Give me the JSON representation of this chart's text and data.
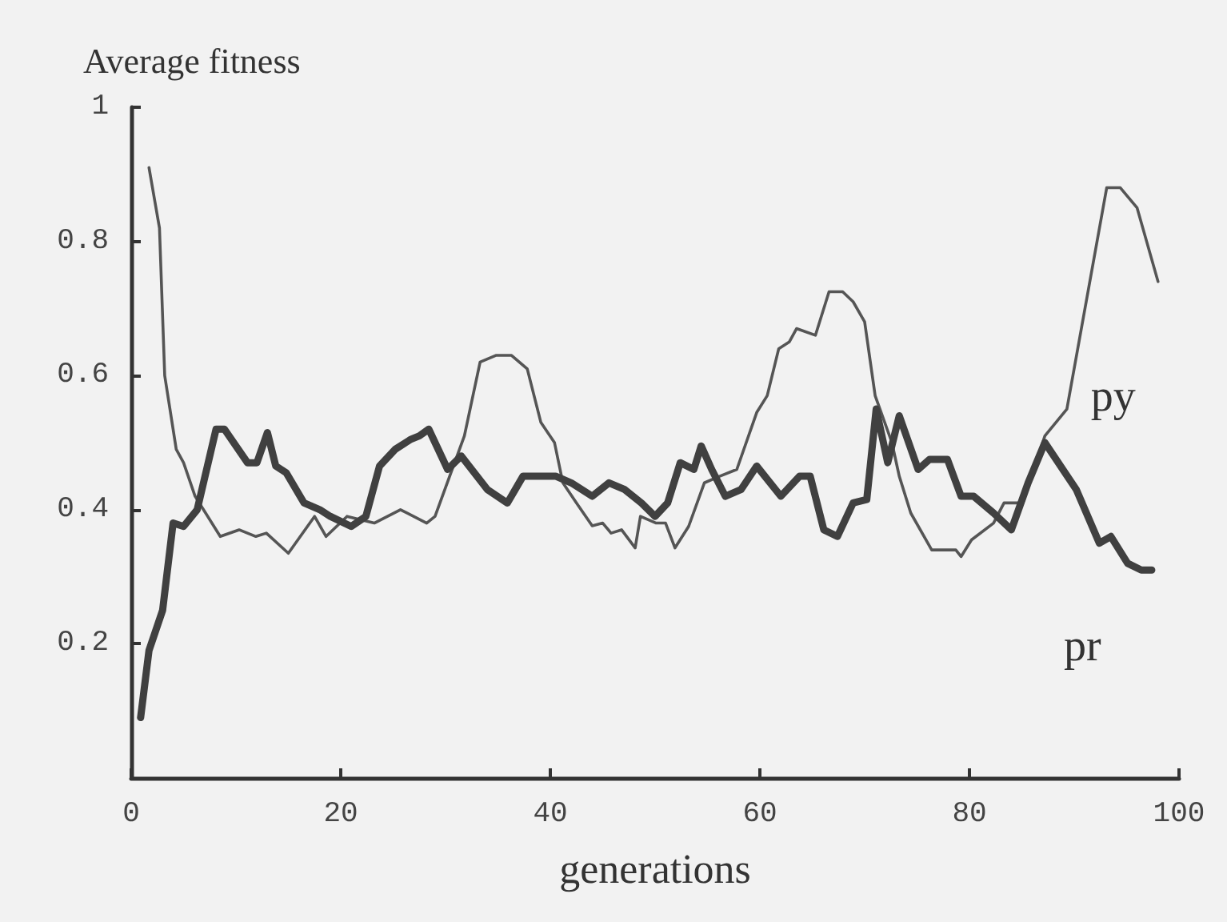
{
  "chart_data": {
    "type": "line",
    "xlabel": "generations",
    "ylabel": "Average fitness",
    "xlim": [
      0,
      100
    ],
    "xticks": [
      0,
      20,
      40,
      60,
      80,
      100
    ],
    "ylim": [
      0,
      1
    ],
    "yticks": [
      0.2,
      0.4,
      0.6,
      0.8,
      1
    ],
    "grid": false,
    "legend": false,
    "marker": "none",
    "line_style": "solid",
    "series": [
      {
        "name": "py",
        "color": "#555555",
        "x": [
          1.7,
          2.7,
          3.2,
          4.3,
          5,
          6.1,
          8.5,
          10.3,
          11.9,
          12.9,
          15,
          17.5,
          18.6,
          20.6,
          23.2,
          25.7,
          28.2,
          29,
          31.8,
          33.3,
          34.8,
          36.3,
          37.8,
          39.1,
          40.4,
          41.2,
          42.5,
          44,
          45,
          45.8,
          46.8,
          48.1,
          48.6,
          50.1,
          51,
          51.9,
          53.2,
          54.7,
          56.2,
          57.8,
          59.7,
          60.7,
          61.8,
          62.8,
          63.5,
          65.3,
          66.6,
          67.9,
          68.9,
          70,
          71,
          72.6,
          73.3,
          74.4,
          76.4,
          78.7,
          79.2,
          80.2,
          82.3,
          83.3,
          85.1,
          87.2,
          89.3,
          93.1,
          94.4,
          96,
          98
        ],
        "values": [
          0.91,
          0.82,
          0.6,
          0.49,
          0.47,
          0.42,
          0.36,
          0.37,
          0.36,
          0.365,
          0.335,
          0.39,
          0.36,
          0.39,
          0.38,
          0.4,
          0.38,
          0.39,
          0.51,
          0.62,
          0.63,
          0.63,
          0.61,
          0.53,
          0.5,
          0.44,
          0.41,
          0.376,
          0.38,
          0.365,
          0.37,
          0.343,
          0.39,
          0.38,
          0.38,
          0.343,
          0.375,
          0.44,
          0.45,
          0.46,
          0.545,
          0.57,
          0.64,
          0.65,
          0.67,
          0.66,
          0.725,
          0.725,
          0.71,
          0.68,
          0.57,
          0.5,
          0.45,
          0.395,
          0.34,
          0.34,
          0.33,
          0.355,
          0.38,
          0.41,
          0.41,
          0.51,
          0.55,
          0.88,
          0.88,
          0.85,
          0.74
        ]
      },
      {
        "name": "pr",
        "color": "#404040",
        "x": [
          0.9,
          1.7,
          3,
          4,
          5,
          6.3,
          8.1,
          8.9,
          11.1,
          12,
          13,
          13.8,
          14.8,
          16.5,
          18,
          19,
          21,
          22.4,
          23.7,
          25.2,
          26.7,
          27.5,
          28.4,
          30.2,
          31.5,
          34,
          35.9,
          37.4,
          40.5,
          42,
          44,
          45.6,
          47.1,
          48.7,
          50,
          51.2,
          52.4,
          53.7,
          54.4,
          55.4,
          56.7,
          58.2,
          59.7,
          62,
          63.8,
          64.8,
          66.1,
          67.4,
          68.9,
          70.2,
          71.1,
          72.2,
          73.3,
          75.1,
          76.2,
          77.9,
          79.2,
          80.4,
          82.3,
          84,
          85.6,
          87.2,
          90.2,
          92.4,
          93.5,
          95.1,
          96.4,
          97.4
        ],
        "values": [
          0.09,
          0.19,
          0.25,
          0.38,
          0.375,
          0.4,
          0.52,
          0.52,
          0.47,
          0.47,
          0.515,
          0.465,
          0.455,
          0.41,
          0.4,
          0.39,
          0.375,
          0.39,
          0.465,
          0.49,
          0.505,
          0.51,
          0.52,
          0.46,
          0.48,
          0.43,
          0.41,
          0.45,
          0.45,
          0.44,
          0.42,
          0.44,
          0.43,
          0.41,
          0.39,
          0.41,
          0.47,
          0.46,
          0.495,
          0.46,
          0.42,
          0.43,
          0.465,
          0.42,
          0.45,
          0.45,
          0.37,
          0.36,
          0.41,
          0.415,
          0.55,
          0.47,
          0.54,
          0.46,
          0.475,
          0.475,
          0.42,
          0.42,
          0.395,
          0.37,
          0.44,
          0.5,
          0.43,
          0.35,
          0.36,
          0.32,
          0.31,
          0.31
        ]
      }
    ]
  }
}
